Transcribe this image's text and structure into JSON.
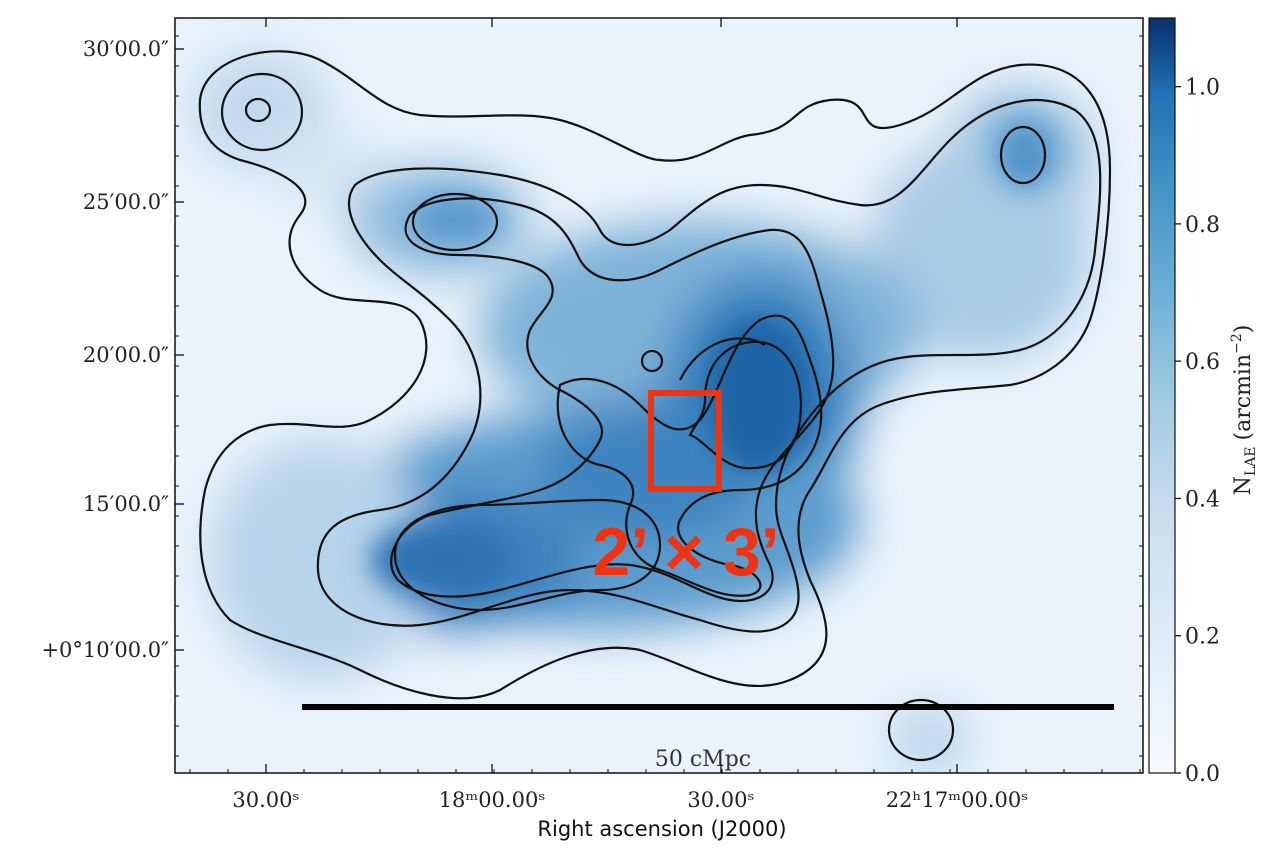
{
  "chart_data": {
    "type": "heatmap",
    "title": "",
    "xlabel": "Right ascension (J2000)",
    "ylabel": "",
    "x_ticks": [
      "30.00ˢ",
      "18ᵐ00.00ˢ",
      "30.00ˢ",
      "22ʰ17ᵐ00.00ˢ"
    ],
    "y_ticks": [
      "30′00.0″",
      "25′00.0″",
      "20′00.0″",
      "15′00.0″",
      "+0°10′00.0″"
    ],
    "colorbar": {
      "label": "N_LAE (arcmin⁻²)",
      "label_main": "N",
      "label_sub": "LAE",
      "label_unit": "(arcmin",
      "label_exp": "−2",
      "label_close": ")",
      "ticks": [
        "0.0",
        "0.2",
        "0.4",
        "0.6",
        "0.8",
        "1.0"
      ],
      "tick_values": [
        0.0,
        0.2,
        0.4,
        0.6,
        0.8,
        1.0
      ],
      "range": [
        0.0,
        1.1
      ],
      "colormap": "Blues",
      "color_low": "#f7fbff",
      "color_high": "#08306b"
    },
    "scale_bar_label": "50 cMpc",
    "annotation": {
      "text": "2’ × 3’",
      "color": "#ee3311"
    },
    "grid": false
  }
}
